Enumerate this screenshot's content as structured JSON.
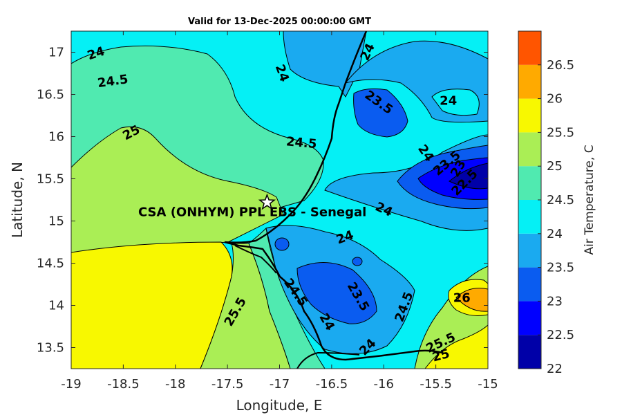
{
  "title": "Valid for 13-Dec-2025 00:00:00 GMT",
  "map": {
    "x_axis": {
      "label": "Longitude, E",
      "range": [
        -19,
        -15
      ],
      "ticks": [
        -19,
        -18.5,
        -18,
        -17.5,
        -17,
        -16.5,
        -16,
        -15.5,
        -15
      ],
      "tick_labels": [
        "-19",
        "-18.5",
        "-18",
        "-17.5",
        "-17",
        "-16.5",
        "-16",
        "-15.5",
        "-15"
      ]
    },
    "y_axis": {
      "label": "Latitude, N",
      "range": [
        13.25,
        17.25
      ],
      "ticks": [
        13.5,
        14,
        14.5,
        15,
        15.5,
        16,
        16.5,
        17
      ],
      "tick_labels": [
        "13.5",
        "14",
        "14.5",
        "15",
        "15.5",
        "16",
        "16.5",
        "17"
      ]
    },
    "site": {
      "name": "CSA (ONHYM) PPL EBS  - Senegal",
      "lon": -17.12,
      "lat": 15.22
    },
    "contour_labels": [
      {
        "text": "24",
        "lon": -18.76,
        "lat": 16.98,
        "rot": -18
      },
      {
        "text": "24.5",
        "lon": -18.6,
        "lat": 16.65,
        "rot": -8
      },
      {
        "text": "25",
        "lon": -18.42,
        "lat": 16.04,
        "rot": -28
      },
      {
        "text": "24",
        "lon": -16.98,
        "lat": 16.75,
        "rot": 70
      },
      {
        "text": "24.5",
        "lon": -16.79,
        "lat": 15.92,
        "rot": 5
      },
      {
        "text": "24",
        "lon": -16.15,
        "lat": 17.0,
        "rot": -65
      },
      {
        "text": "23.5",
        "lon": -16.05,
        "lat": 16.4,
        "rot": 35
      },
      {
        "text": "24",
        "lon": -15.38,
        "lat": 16.42,
        "rot": 0
      },
      {
        "text": "24",
        "lon": -15.6,
        "lat": 15.8,
        "rot": 55
      },
      {
        "text": "23.5",
        "lon": -15.39,
        "lat": 15.68,
        "rot": -40
      },
      {
        "text": "23",
        "lon": -15.28,
        "lat": 15.62,
        "rot": -60
      },
      {
        "text": "22.5",
        "lon": -15.22,
        "lat": 15.45,
        "rot": -45
      },
      {
        "text": "24",
        "lon": -16.0,
        "lat": 15.13,
        "rot": 25
      },
      {
        "text": "24",
        "lon": -16.37,
        "lat": 14.8,
        "rot": -20
      },
      {
        "text": "24.5",
        "lon": -16.85,
        "lat": 14.15,
        "rot": 55
      },
      {
        "text": "23.5",
        "lon": -16.25,
        "lat": 14.1,
        "rot": 60
      },
      {
        "text": "24.5",
        "lon": -15.8,
        "lat": 13.98,
        "rot": -70
      },
      {
        "text": "24",
        "lon": -16.55,
        "lat": 13.8,
        "rot": 60
      },
      {
        "text": "24",
        "lon": -16.15,
        "lat": 13.5,
        "rot": -45
      },
      {
        "text": "25.5",
        "lon": -17.42,
        "lat": 13.92,
        "rot": -60
      },
      {
        "text": "26",
        "lon": -15.25,
        "lat": 14.08,
        "rot": 0
      },
      {
        "text": "25.5",
        "lon": -15.45,
        "lat": 13.55,
        "rot": -25
      },
      {
        "text": "25",
        "lon": -15.45,
        "lat": 13.4,
        "rot": -15
      }
    ]
  },
  "colorbar": {
    "label": "Air Temperature, C",
    "levels": [
      22,
      22.5,
      23,
      23.5,
      24,
      24.5,
      25,
      25.5,
      26,
      26.5
    ],
    "tick_labels": [
      "22",
      "22.5",
      "23",
      "23.5",
      "24",
      "24.5",
      "25",
      "25.5",
      "26",
      "26.5"
    ],
    "colors": [
      "#0000a8",
      "#0000ff",
      "#0a5cf0",
      "#1aaaf0",
      "#05f0f5",
      "#50eab0",
      "#aaee55",
      "#f8f800",
      "#ffaa00",
      "#ff5500"
    ]
  }
}
